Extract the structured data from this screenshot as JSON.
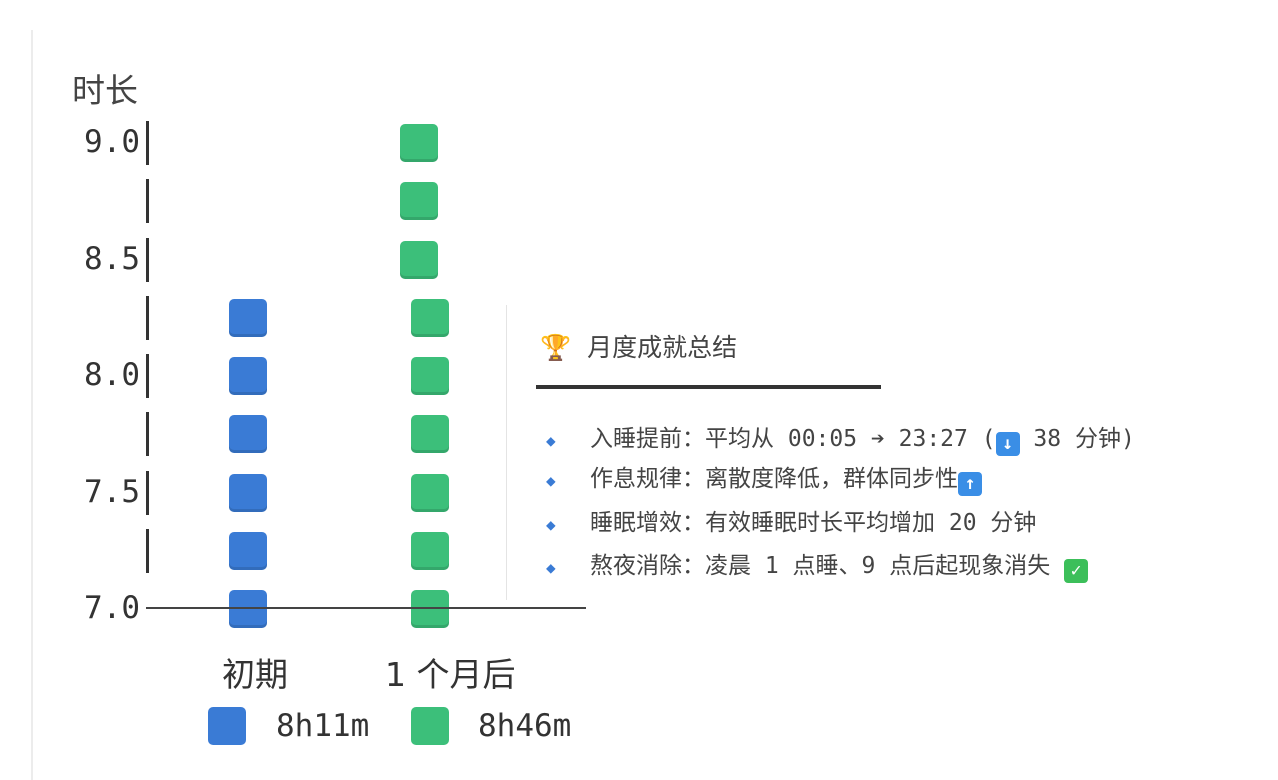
{
  "chart_data": {
    "type": "bar",
    "style": "emoji-square text chart",
    "ylabel": "时长",
    "yticks": [
      "9.0",
      "8.5",
      "8.0",
      "7.5",
      "7.0"
    ],
    "ylim": [
      7.0,
      9.0
    ],
    "categories": [
      "初期",
      "1 个月后"
    ],
    "values": [
      8.18,
      8.77
    ],
    "value_labels": [
      "8h11m",
      "8h46m"
    ],
    "colors": [
      "#3a7bd5",
      "#3cbf7a"
    ],
    "legend_placement": "bottom"
  },
  "summary": {
    "icon": "trophy-icon",
    "title": "月度成就总结",
    "items": [
      {
        "text": "入睡提前：平均从 00:05 ➔ 23:27 (",
        "icon": "down-arrow-icon",
        "tail": " 38 分钟)"
      },
      {
        "text": "作息规律：离散度降低，群体同步性",
        "icon": "up-arrow-icon",
        "tail": ""
      },
      {
        "text": "睡眠增效：有效睡眠时长平均增加 20 分钟",
        "tail": ""
      },
      {
        "text": "熬夜消除：凌晨 1 点睡、9 点后起现象消失 ",
        "icon": "check-icon",
        "tail": ""
      }
    ]
  }
}
